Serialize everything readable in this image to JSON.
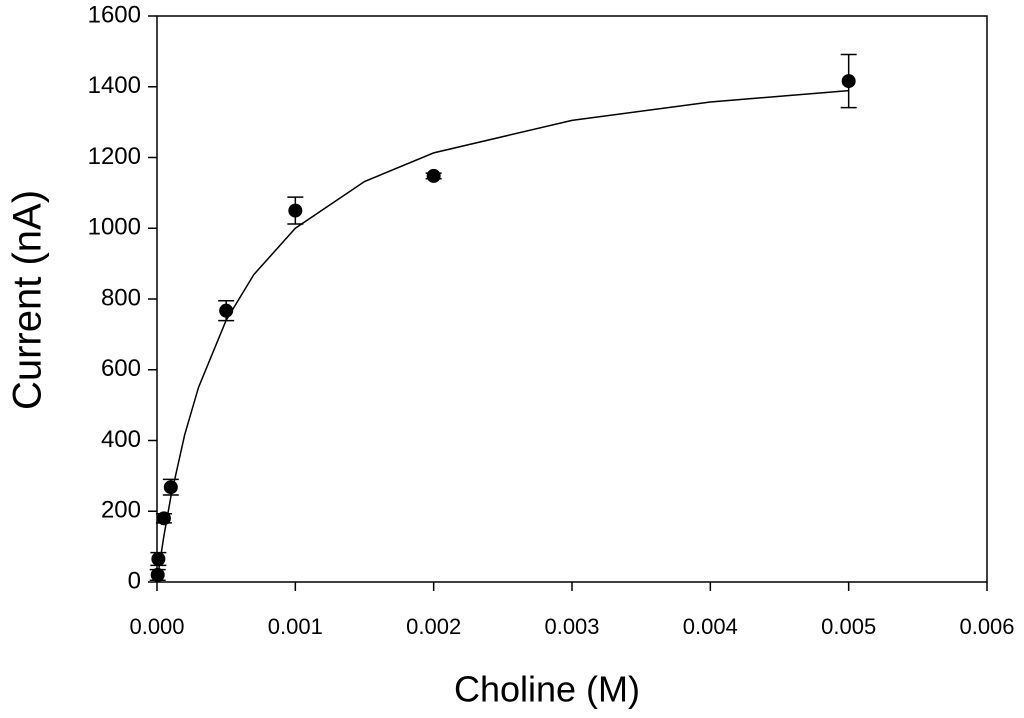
{
  "chart_data": {
    "type": "scatter",
    "x_label": "Choline (M)",
    "y_label": "Current (nA)",
    "series": [
      {
        "color": "#000000",
        "x": [
          5e-06,
          1e-05,
          5e-05,
          0.0001,
          0.0005,
          0.001,
          0.002,
          0.005
        ],
        "values": [
          20,
          65,
          180,
          268,
          767,
          1050,
          1148,
          1416
        ],
        "errors": [
          15,
          18,
          13,
          22,
          28,
          38,
          8,
          75
        ]
      }
    ],
    "fit": {
      "x": [
        0,
        2e-05,
        5e-05,
        0.0001,
        0.0002,
        0.0003,
        0.0005,
        0.0007,
        0.001,
        0.0015,
        0.002,
        0.003,
        0.004,
        0.005
      ],
      "values": [
        0,
        55,
        130.5,
        240.6,
        416,
        550,
        740,
        869,
        1000,
        1132,
        1213,
        1305,
        1357,
        1389
      ]
    },
    "xlim": [
      0,
      0.006
    ],
    "ylim": [
      0,
      1600
    ],
    "xticks": [
      {
        "value": 0,
        "label": "0.000"
      },
      {
        "value": 0.001,
        "label": "0.001"
      },
      {
        "value": 0.002,
        "label": "0.002"
      },
      {
        "value": 0.003,
        "label": "0.003"
      },
      {
        "value": 0.004,
        "label": "0.004"
      },
      {
        "value": 0.005,
        "label": "0.005"
      },
      {
        "value": 0.006,
        "label": "0.006"
      }
    ],
    "yticks": [
      0,
      200,
      400,
      600,
      800,
      1000,
      1200,
      1400,
      1600
    ]
  }
}
